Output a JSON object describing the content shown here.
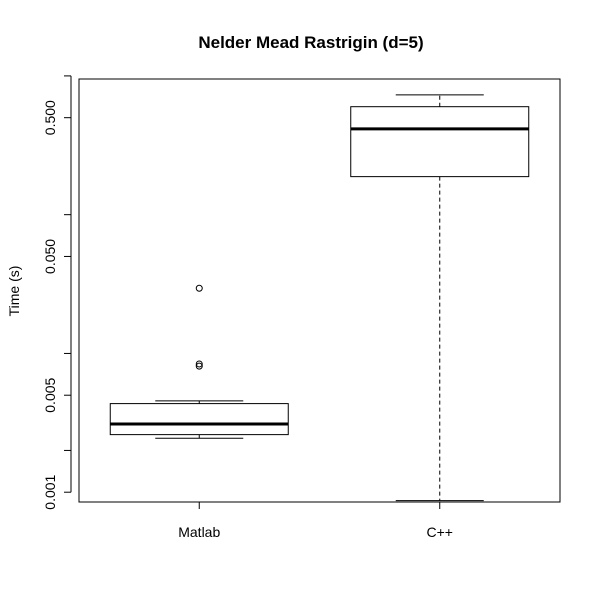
{
  "chart_data": {
    "type": "boxplot",
    "title": "Nelder Mead Rastrigin (d=5)",
    "xlabel": "",
    "ylabel": "Time (s)",
    "y_scale": "log10",
    "ylim": [
      0.00085,
      0.95
    ],
    "y_ticks": [
      0.001,
      0.002,
      0.005,
      0.01,
      0.05,
      0.1,
      0.5,
      1.0
    ],
    "y_tick_labels": [
      "0.001",
      "",
      "0.005",
      "",
      "0.050",
      "",
      "0.500",
      ""
    ],
    "categories": [
      "Matlab",
      "C++"
    ],
    "boxes": [
      {
        "name": "Matlab",
        "whisker_low": 0.00245,
        "q1": 0.0026,
        "median": 0.0031,
        "q3": 0.00435,
        "whisker_high": 0.00455,
        "outliers": [
          0.0295,
          0.0084,
          0.0081
        ]
      },
      {
        "name": "C++",
        "whisker_low": 0.00087,
        "q1": 0.188,
        "median": 0.415,
        "q3": 0.6,
        "whisker_high": 0.73,
        "outliers": []
      }
    ]
  }
}
